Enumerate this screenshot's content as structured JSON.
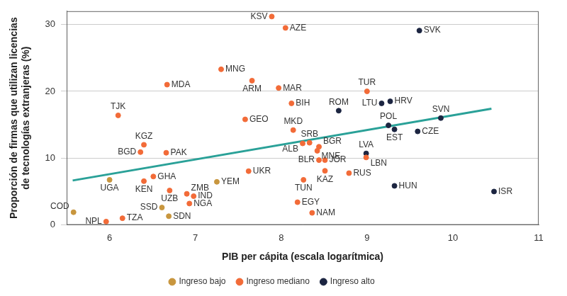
{
  "chart_data": {
    "type": "scatter",
    "x_label": "PIB per cápita (escala logarítmica)",
    "y_label": [
      "Proporción de firmas que utilizan licencias",
      "de tecnologías extranjeras (%)"
    ],
    "xlim": [
      5.5,
      11
    ],
    "xticks": [
      6,
      7,
      8,
      9,
      10,
      11
    ],
    "ylim": [
      0,
      32
    ],
    "yticks": [
      0,
      10,
      20,
      30
    ],
    "grid": "y",
    "legend": "bottom",
    "series": [
      {
        "name": "Ingreso bajo",
        "color": "#c8963e",
        "marker": "circle",
        "point_labels": [
          "COD",
          "UGA",
          "YEM",
          "SSD",
          "SDN"
        ],
        "x": [
          5.58,
          6.0,
          7.25,
          6.61,
          6.69
        ],
        "y": [
          1.9,
          6.75,
          6.45,
          2.6,
          1.3
        ]
      },
      {
        "name": "Ingreso mediano",
        "color": "#f26b38",
        "marker": "circle",
        "point_labels": [
          "KSV",
          "AZE",
          "MNG",
          "MDA",
          "ARM",
          "MAR",
          "TUR",
          "TJK",
          "BIH",
          "GEO",
          "MKD",
          "KGZ",
          "BGD",
          "PAK",
          "SRB",
          "ALB",
          "BGR",
          "MNE",
          "BLR",
          "JOR",
          "UKR",
          "KAZ",
          "TUN",
          "RUS",
          "LBN",
          "GHA",
          "KEN",
          "UZB",
          "ZMB",
          "IND",
          "NGA",
          "EGY",
          "NAM",
          "TZA",
          "NPL"
        ],
        "x": [
          7.89,
          8.05,
          7.3,
          6.67,
          7.66,
          7.97,
          9.0,
          6.1,
          8.12,
          7.58,
          8.14,
          6.4,
          6.36,
          6.66,
          8.33,
          8.25,
          8.44,
          8.42,
          8.44,
          8.51,
          7.62,
          8.51,
          8.26,
          8.79,
          8.99,
          6.51,
          6.4,
          6.7,
          6.9,
          6.98,
          6.93,
          8.19,
          8.36,
          6.15,
          5.96
        ],
        "y": [
          31.2,
          29.5,
          23.3,
          21.0,
          21.6,
          20.5,
          20.0,
          16.4,
          18.2,
          15.8,
          14.2,
          12.0,
          10.9,
          10.8,
          12.3,
          12.2,
          11.7,
          11.1,
          9.7,
          9.7,
          8.05,
          8.1,
          6.75,
          7.75,
          10.1,
          7.25,
          6.55,
          5.15,
          4.65,
          4.3,
          3.2,
          3.4,
          1.8,
          1.0,
          0.5
        ]
      },
      {
        "name": "Ingreso alto",
        "color": "#1c2541",
        "marker": "circle",
        "point_labels": [
          "SVK",
          "ROM",
          "LTU",
          "HRV",
          "POL",
          "EST",
          "SVN",
          "CZE",
          "LVA",
          "HUN",
          "ISR"
        ],
        "x": [
          9.61,
          8.67,
          9.17,
          9.27,
          9.25,
          9.32,
          9.86,
          9.59,
          8.99,
          9.32,
          10.48
        ],
        "y": [
          29.1,
          17.1,
          18.2,
          18.5,
          14.9,
          14.3,
          16.0,
          14.0,
          10.7,
          5.85,
          5.0
        ]
      }
    ],
    "trend_line": {
      "color": "#2aa198",
      "line_style": "solid",
      "x": [
        5.57,
        10.45
      ],
      "y": [
        6.65,
        17.4
      ]
    }
  }
}
